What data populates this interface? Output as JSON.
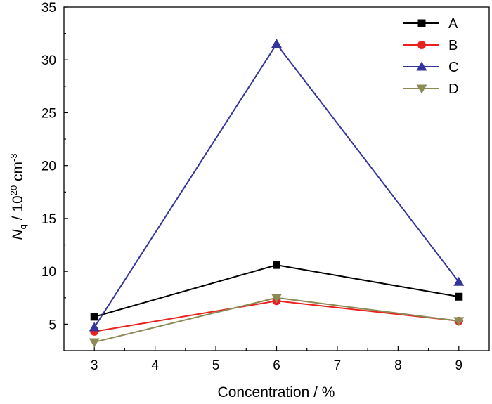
{
  "chart_data": {
    "type": "line",
    "xlabel": "Concentration / %",
    "ylabel": {
      "symbol": "N",
      "subscript": "q",
      "middle": " / 10",
      "exponent": "20",
      "unit": " cm",
      "unit_exponent": "-3"
    },
    "xlim": [
      2.5,
      9.5
    ],
    "ylim": [
      2.5,
      35
    ],
    "xticks": [
      3,
      4,
      5,
      6,
      7,
      8,
      9
    ],
    "yticks": [
      5,
      10,
      15,
      20,
      25,
      30,
      35
    ],
    "x": [
      3,
      6,
      9
    ],
    "series": [
      {
        "name": "A",
        "values": [
          5.7,
          10.6,
          7.6
        ],
        "color": "#000000",
        "marker": "square"
      },
      {
        "name": "B",
        "values": [
          4.3,
          7.2,
          5.3
        ],
        "color": "#e8231f",
        "marker": "circle"
      },
      {
        "name": "C",
        "values": [
          4.7,
          31.5,
          9.0
        ],
        "color": "#35349a",
        "marker": "triangle-up"
      },
      {
        "name": "D",
        "values": [
          3.3,
          7.5,
          5.3
        ],
        "color": "#8c8a55",
        "marker": "triangle-down"
      }
    ],
    "legend_position": "top-right",
    "grid": false
  }
}
